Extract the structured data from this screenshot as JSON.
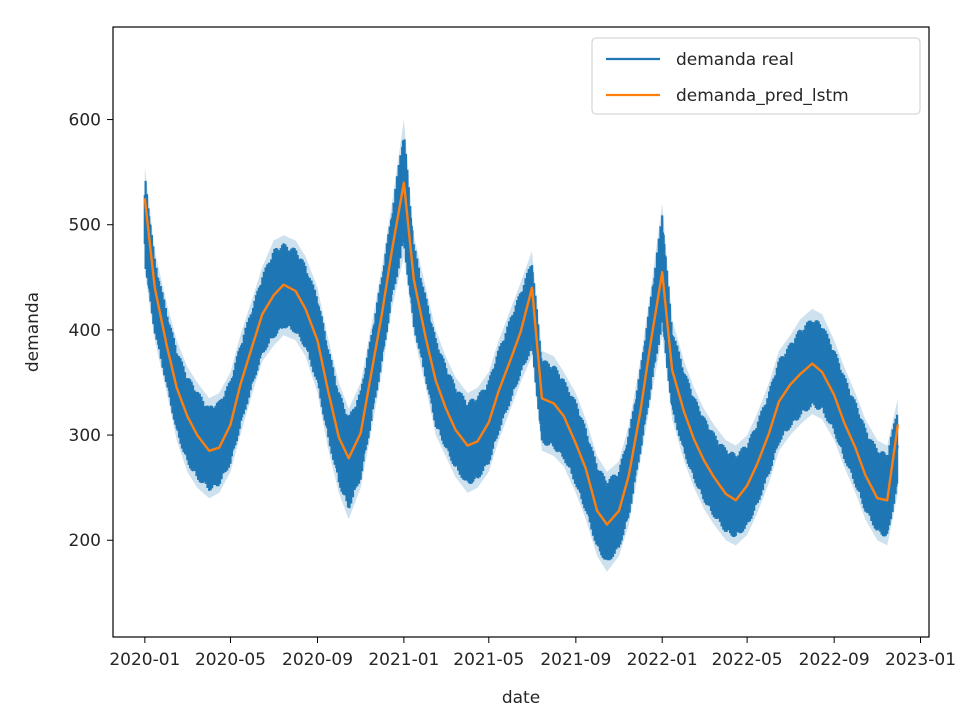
{
  "chart_data": {
    "type": "line",
    "title": "",
    "xlabel": "date",
    "ylabel": "demanda",
    "xlim": [
      "2019-11-17",
      "2023-01-13"
    ],
    "ylim": [
      108,
      688
    ],
    "grid": false,
    "legend_position": "upper right",
    "x_ticks": [
      "2020-01",
      "2020-05",
      "2020-09",
      "2021-01",
      "2021-05",
      "2021-09",
      "2022-01",
      "2022-05",
      "2022-09",
      "2023-01"
    ],
    "y_ticks": [
      200,
      300,
      400,
      500,
      600
    ],
    "colors": {
      "real": "#1f77b4",
      "pred": "#ff7f0e",
      "band_alpha": 0.22
    },
    "series": [
      {
        "name": "demanda real",
        "x": [
          "2020-01-01",
          "2020-01-15",
          "2020-02-01",
          "2020-02-15",
          "2020-03-01",
          "2020-03-15",
          "2020-04-01",
          "2020-04-15",
          "2020-05-01",
          "2020-05-15",
          "2020-06-01",
          "2020-06-15",
          "2020-07-01",
          "2020-07-15",
          "2020-08-01",
          "2020-08-15",
          "2020-09-01",
          "2020-09-15",
          "2020-10-01",
          "2020-10-15",
          "2020-11-01",
          "2020-11-15",
          "2020-12-01",
          "2020-12-15",
          "2021-01-01",
          "2021-01-15",
          "2021-02-01",
          "2021-02-15",
          "2021-03-01",
          "2021-03-15",
          "2021-04-01",
          "2021-04-15",
          "2021-05-01",
          "2021-05-15",
          "2021-06-01",
          "2021-06-15",
          "2021-07-01",
          "2021-07-15",
          "2021-08-01",
          "2021-08-15",
          "2021-09-01",
          "2021-09-15",
          "2021-10-01",
          "2021-10-15",
          "2021-11-01",
          "2021-11-15",
          "2021-12-01",
          "2021-12-15",
          "2022-01-01",
          "2022-01-15",
          "2022-02-01",
          "2022-02-15",
          "2022-03-01",
          "2022-03-15",
          "2022-04-01",
          "2022-04-15",
          "2022-05-01",
          "2022-05-15",
          "2022-06-01",
          "2022-06-15",
          "2022-07-01",
          "2022-07-15",
          "2022-08-01",
          "2022-08-15",
          "2022-09-01",
          "2022-09-15",
          "2022-10-01",
          "2022-10-15",
          "2022-11-01",
          "2022-11-15",
          "2022-11-30"
        ],
        "values": [
          505,
          430,
          380,
          340,
          315,
          300,
          285,
          290,
          310,
          345,
          380,
          410,
          430,
          440,
          435,
          420,
          390,
          345,
          300,
          275,
          300,
          350,
          410,
          470,
          540,
          440,
          390,
          350,
          325,
          305,
          290,
          295,
          310,
          340,
          370,
          395,
          420,
          330,
          325,
          315,
          290,
          265,
          230,
          215,
          225,
          260,
          320,
          380,
          460,
          360,
          320,
          295,
          275,
          260,
          245,
          240,
          250,
          270,
          300,
          330,
          345,
          355,
          365,
          360,
          340,
          315,
          290,
          265,
          245,
          240,
          290
        ],
        "min": [
          455,
          390,
          340,
          295,
          265,
          250,
          240,
          245,
          265,
          300,
          340,
          370,
          385,
          395,
          390,
          375,
          340,
          290,
          245,
          220,
          250,
          300,
          360,
          420,
          470,
          395,
          345,
          300,
          280,
          260,
          245,
          250,
          265,
          295,
          325,
          350,
          375,
          285,
          280,
          270,
          245,
          220,
          185,
          170,
          185,
          215,
          275,
          330,
          395,
          315,
          275,
          250,
          230,
          215,
          200,
          195,
          205,
          225,
          255,
          285,
          300,
          310,
          320,
          315,
          295,
          270,
          245,
          220,
          200,
          195,
          245
        ],
        "max": [
          555,
          475,
          425,
          390,
          365,
          350,
          335,
          340,
          360,
          395,
          430,
          460,
          485,
          490,
          485,
          470,
          440,
          395,
          350,
          325,
          350,
          400,
          460,
          520,
          600,
          490,
          440,
          400,
          375,
          355,
          340,
          345,
          360,
          390,
          420,
          445,
          475,
          380,
          375,
          360,
          340,
          315,
          280,
          265,
          275,
          310,
          370,
          435,
          520,
          410,
          370,
          345,
          325,
          310,
          295,
          290,
          300,
          320,
          350,
          380,
          395,
          410,
          420,
          415,
          390,
          365,
          340,
          315,
          295,
          290,
          335
        ]
      },
      {
        "name": "demanda_pred_lstm",
        "x": [
          "2020-01-01",
          "2020-01-15",
          "2020-02-01",
          "2020-02-15",
          "2020-03-01",
          "2020-03-15",
          "2020-04-01",
          "2020-04-15",
          "2020-05-01",
          "2020-05-15",
          "2020-06-01",
          "2020-06-15",
          "2020-07-01",
          "2020-07-15",
          "2020-08-01",
          "2020-08-15",
          "2020-09-01",
          "2020-09-15",
          "2020-10-01",
          "2020-10-15",
          "2020-11-01",
          "2020-11-15",
          "2020-12-01",
          "2020-12-15",
          "2021-01-01",
          "2021-01-15",
          "2021-02-01",
          "2021-02-15",
          "2021-03-01",
          "2021-03-15",
          "2021-04-01",
          "2021-04-15",
          "2021-05-01",
          "2021-05-15",
          "2021-06-01",
          "2021-06-15",
          "2021-07-01",
          "2021-07-15",
          "2021-08-01",
          "2021-08-15",
          "2021-09-01",
          "2021-09-15",
          "2021-10-01",
          "2021-10-15",
          "2021-11-01",
          "2021-11-15",
          "2021-12-01",
          "2021-12-15",
          "2022-01-01",
          "2022-01-15",
          "2022-02-01",
          "2022-02-15",
          "2022-03-01",
          "2022-03-15",
          "2022-04-01",
          "2022-04-15",
          "2022-05-01",
          "2022-05-15",
          "2022-06-01",
          "2022-06-15",
          "2022-07-01",
          "2022-07-15",
          "2022-08-01",
          "2022-08-15",
          "2022-09-01",
          "2022-09-15",
          "2022-10-01",
          "2022-10-15",
          "2022-11-01",
          "2022-11-15",
          "2022-11-30"
        ],
        "values": [
          525,
          440,
          385,
          345,
          318,
          300,
          285,
          288,
          310,
          348,
          385,
          415,
          433,
          443,
          437,
          420,
          390,
          345,
          298,
          278,
          302,
          355,
          415,
          475,
          540,
          448,
          392,
          352,
          326,
          305,
          290,
          294,
          312,
          342,
          372,
          398,
          440,
          335,
          330,
          318,
          292,
          268,
          228,
          215,
          228,
          262,
          322,
          385,
          455,
          362,
          322,
          296,
          276,
          260,
          244,
          238,
          252,
          272,
          302,
          332,
          348,
          358,
          368,
          360,
          338,
          312,
          288,
          262,
          240,
          238,
          310
        ]
      }
    ]
  }
}
